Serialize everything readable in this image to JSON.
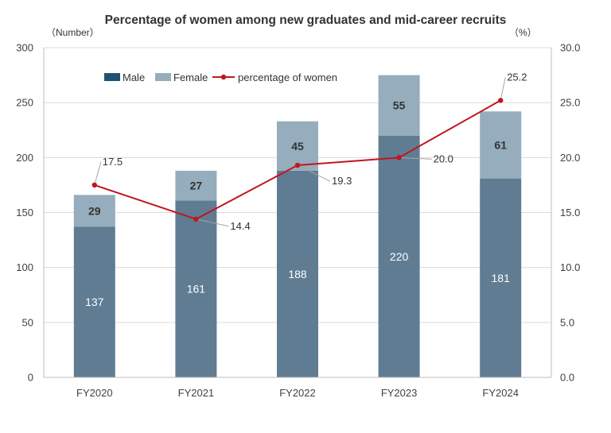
{
  "chart_data": {
    "type": "bar",
    "title": "Percentage of women among new graduates and mid-career recruits",
    "left_axis_unit": "（Number）",
    "right_axis_unit": "（%）",
    "categories": [
      "FY2020",
      "FY2021",
      "FY2022",
      "FY2023",
      "FY2024"
    ],
    "ylim": [
      0,
      300
    ],
    "y_ticks": [
      "0",
      "50",
      "100",
      "150",
      "200",
      "250",
      "300"
    ],
    "y2lim": [
      0,
      30
    ],
    "y2_ticks": [
      "0.0",
      "5.0",
      "10.0",
      "15.0",
      "20.0",
      "25.0",
      "30.0"
    ],
    "grid": true,
    "legend_position": "top-left",
    "series": [
      {
        "name": "Male",
        "kind": "stacked-bar",
        "axis": "left",
        "color": "#5f7c93",
        "legend_color": "#1f5373",
        "values": [
          137,
          161,
          188,
          220,
          181
        ],
        "labels": [
          "137",
          "161",
          "188",
          "220",
          "181"
        ]
      },
      {
        "name": "Female",
        "kind": "stacked-bar",
        "axis": "left",
        "color": "#95adbd",
        "values": [
          29,
          27,
          45,
          55,
          61
        ],
        "labels": [
          "29",
          "27",
          "45",
          "55",
          "61"
        ]
      },
      {
        "name": "percentage of women",
        "kind": "line",
        "axis": "right",
        "color": "#c0161e",
        "values": [
          17.5,
          14.4,
          19.3,
          20.0,
          25.2
        ],
        "labels": [
          "17.5",
          "14.4",
          "19.3",
          "20.0",
          "25.2"
        ]
      }
    ]
  }
}
